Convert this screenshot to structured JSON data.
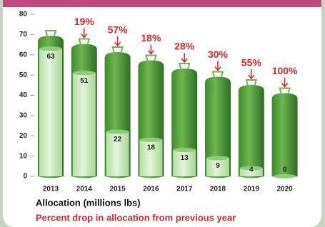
{
  "chart_data": {
    "type": "tank-bar",
    "categories": [
      "2013",
      "2014",
      "2015",
      "2016",
      "2017",
      "2018",
      "2019",
      "2020"
    ],
    "series": [
      {
        "name": "Allocation (millions lbs)",
        "color": "#c9ebb9",
        "values": [
          63,
          51,
          22,
          18,
          13,
          9,
          4,
          0
        ]
      },
      {
        "name": "Percent drop in allocation from previous year",
        "color": "#d8262c",
        "values": [
          null,
          19,
          57,
          18,
          28,
          30,
          55,
          100
        ],
        "value_labels": [
          null,
          "19%",
          "57%",
          "18%",
          "28%",
          "30%",
          "55%",
          "100%"
        ]
      }
    ],
    "ylim": [
      0,
      80
    ],
    "yticks": [
      0,
      10,
      20,
      30,
      40,
      50,
      60,
      70,
      80
    ]
  }
}
